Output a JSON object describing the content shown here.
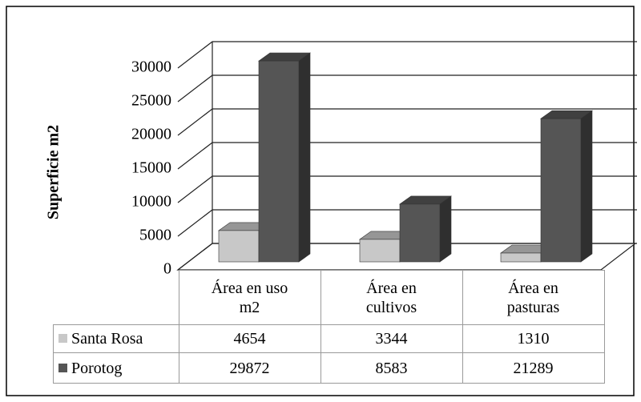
{
  "chart_data": {
    "type": "bar3d",
    "y_label": "Superficie m2",
    "categories": [
      "Área en uso m2",
      "Área en cultivos",
      "Área en pasturas"
    ],
    "series": [
      {
        "name": "Santa Rosa",
        "color": "#c8c8c8",
        "values": [
          4654,
          3344,
          1310
        ]
      },
      {
        "name": "Porotog",
        "color": "#555555",
        "values": [
          29872,
          8583,
          21289
        ]
      }
    ],
    "ylim": [
      0,
      30000
    ],
    "yticks": [
      0,
      5000,
      10000,
      15000,
      20000,
      25000,
      30000
    ],
    "grid": true
  }
}
